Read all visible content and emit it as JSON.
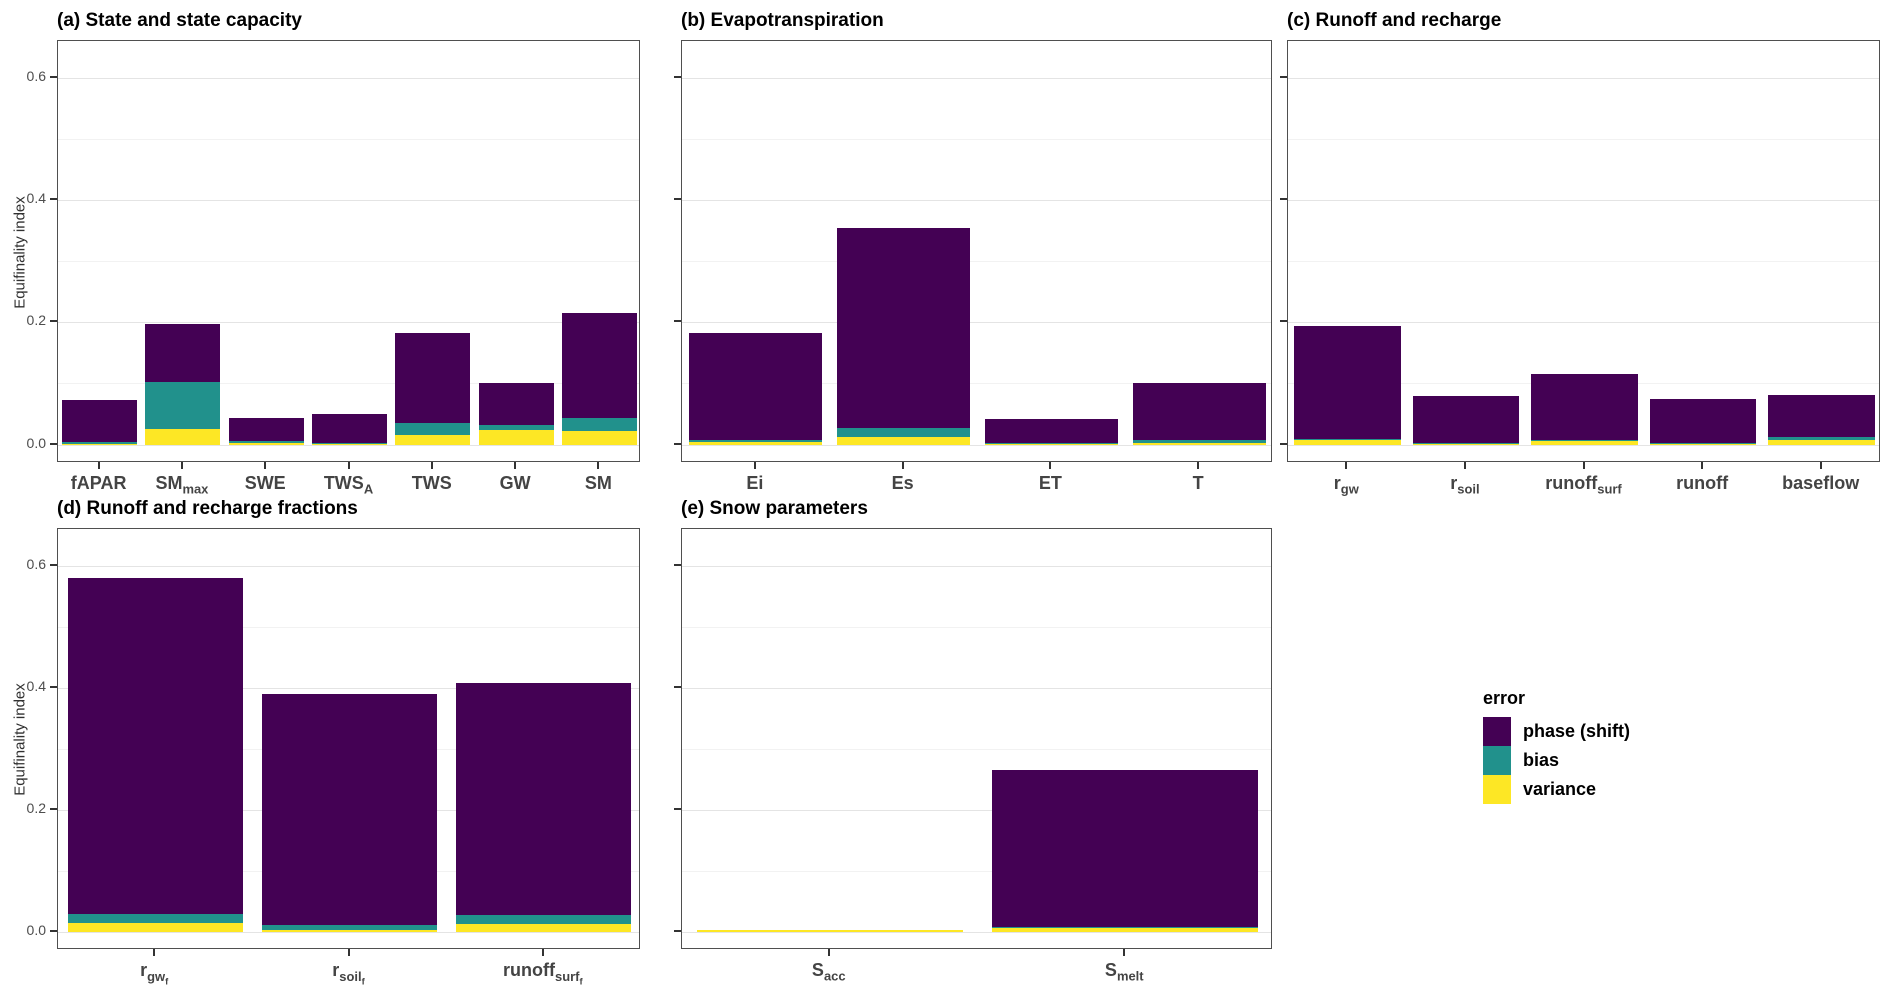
{
  "figure": {
    "y_axis_label": "Equifinality index",
    "y_ticks": [
      "0.0",
      "0.2",
      "0.4",
      "0.6"
    ],
    "legend": {
      "title": "error",
      "items": [
        {
          "label": "phase (shift)",
          "color": "#440154"
        },
        {
          "label": "bias",
          "color": "#21918c"
        },
        {
          "label": "variance",
          "color": "#fde725"
        }
      ]
    }
  },
  "chart_data": {
    "type": "bar",
    "stacked": true,
    "orientation": "vertical",
    "ylabel": "Equifinality index",
    "ylim": [
      0,
      0.6
    ],
    "y_major_ticks": [
      0,
      0.2,
      0.4,
      0.6
    ],
    "y_minor_ticks": [
      0.1,
      0.3,
      0.5
    ],
    "grid": true,
    "legend_position": "right",
    "stack_order_bottom_to_top": [
      "variance",
      "bias",
      "phase"
    ],
    "colors": {
      "phase": "#440154",
      "bias": "#21918c",
      "variance": "#fde725"
    },
    "panels": [
      {
        "id": "a",
        "title": "(a) State and state capacity",
        "bars": [
          {
            "label": "fAPAR",
            "variance": 0.001,
            "bias": 0.004,
            "phase": 0.068,
            "total": 0.073
          },
          {
            "label": "SM_{max}",
            "variance": 0.025,
            "bias": 0.078,
            "phase": 0.094,
            "total": 0.197
          },
          {
            "label": "SWE",
            "variance": 0.002,
            "bias": 0.004,
            "phase": 0.037,
            "total": 0.043
          },
          {
            "label": "TWS_{A}",
            "variance": 0.001,
            "bias": 0.001,
            "phase": 0.048,
            "total": 0.05
          },
          {
            "label": "TWS",
            "variance": 0.016,
            "bias": 0.02,
            "phase": 0.146,
            "total": 0.182
          },
          {
            "label": "GW",
            "variance": 0.024,
            "bias": 0.008,
            "phase": 0.068,
            "total": 0.1
          },
          {
            "label": "SM",
            "variance": 0.022,
            "bias": 0.022,
            "phase": 0.172,
            "total": 0.216
          }
        ]
      },
      {
        "id": "b",
        "title": "(b) Evapotranspiration",
        "bars": [
          {
            "label": "Ei",
            "variance": 0.004,
            "bias": 0.003,
            "phase": 0.175,
            "total": 0.182
          },
          {
            "label": "Es",
            "variance": 0.012,
            "bias": 0.016,
            "phase": 0.327,
            "total": 0.355
          },
          {
            "label": "ET",
            "variance": 0.001,
            "bias": 0.001,
            "phase": 0.04,
            "total": 0.042
          },
          {
            "label": "T",
            "variance": 0.003,
            "bias": 0.005,
            "phase": 0.092,
            "total": 0.1
          }
        ]
      },
      {
        "id": "c",
        "title": "(c) Runoff and recharge",
        "bars": [
          {
            "label": "r_{gw}",
            "variance": 0.007,
            "bias": 0.002,
            "phase": 0.185,
            "total": 0.194
          },
          {
            "label": "r_{soil}",
            "variance": 0.002,
            "bias": 0.001,
            "phase": 0.077,
            "total": 0.08
          },
          {
            "label": "runoff_{surf}",
            "variance": 0.006,
            "bias": 0.002,
            "phase": 0.107,
            "total": 0.115
          },
          {
            "label": "runoff",
            "variance": 0.002,
            "bias": 0.001,
            "phase": 0.072,
            "total": 0.075
          },
          {
            "label": "baseflow",
            "variance": 0.008,
            "bias": 0.005,
            "phase": 0.069,
            "total": 0.082
          }
        ]
      },
      {
        "id": "d",
        "title": "(d) Runoff and recharge fractions",
        "bars": [
          {
            "label": "r_{gw_{f}}",
            "variance": 0.014,
            "bias": 0.015,
            "phase": 0.551,
            "total": 0.58
          },
          {
            "label": "r_{soil_{f}}",
            "variance": 0.003,
            "bias": 0.008,
            "phase": 0.379,
            "total": 0.39
          },
          {
            "label": "runoff_{surf_{f}}",
            "variance": 0.012,
            "bias": 0.016,
            "phase": 0.38,
            "total": 0.408
          }
        ]
      },
      {
        "id": "e",
        "title": "(e) Snow parameters",
        "bars": [
          {
            "label": "S_{acc}",
            "variance": 0.003,
            "bias": 0.0,
            "phase": 0.0,
            "total": 0.003
          },
          {
            "label": "S_{melt}",
            "variance": 0.006,
            "bias": 0.001,
            "phase": 0.258,
            "total": 0.265
          }
        ]
      }
    ]
  }
}
